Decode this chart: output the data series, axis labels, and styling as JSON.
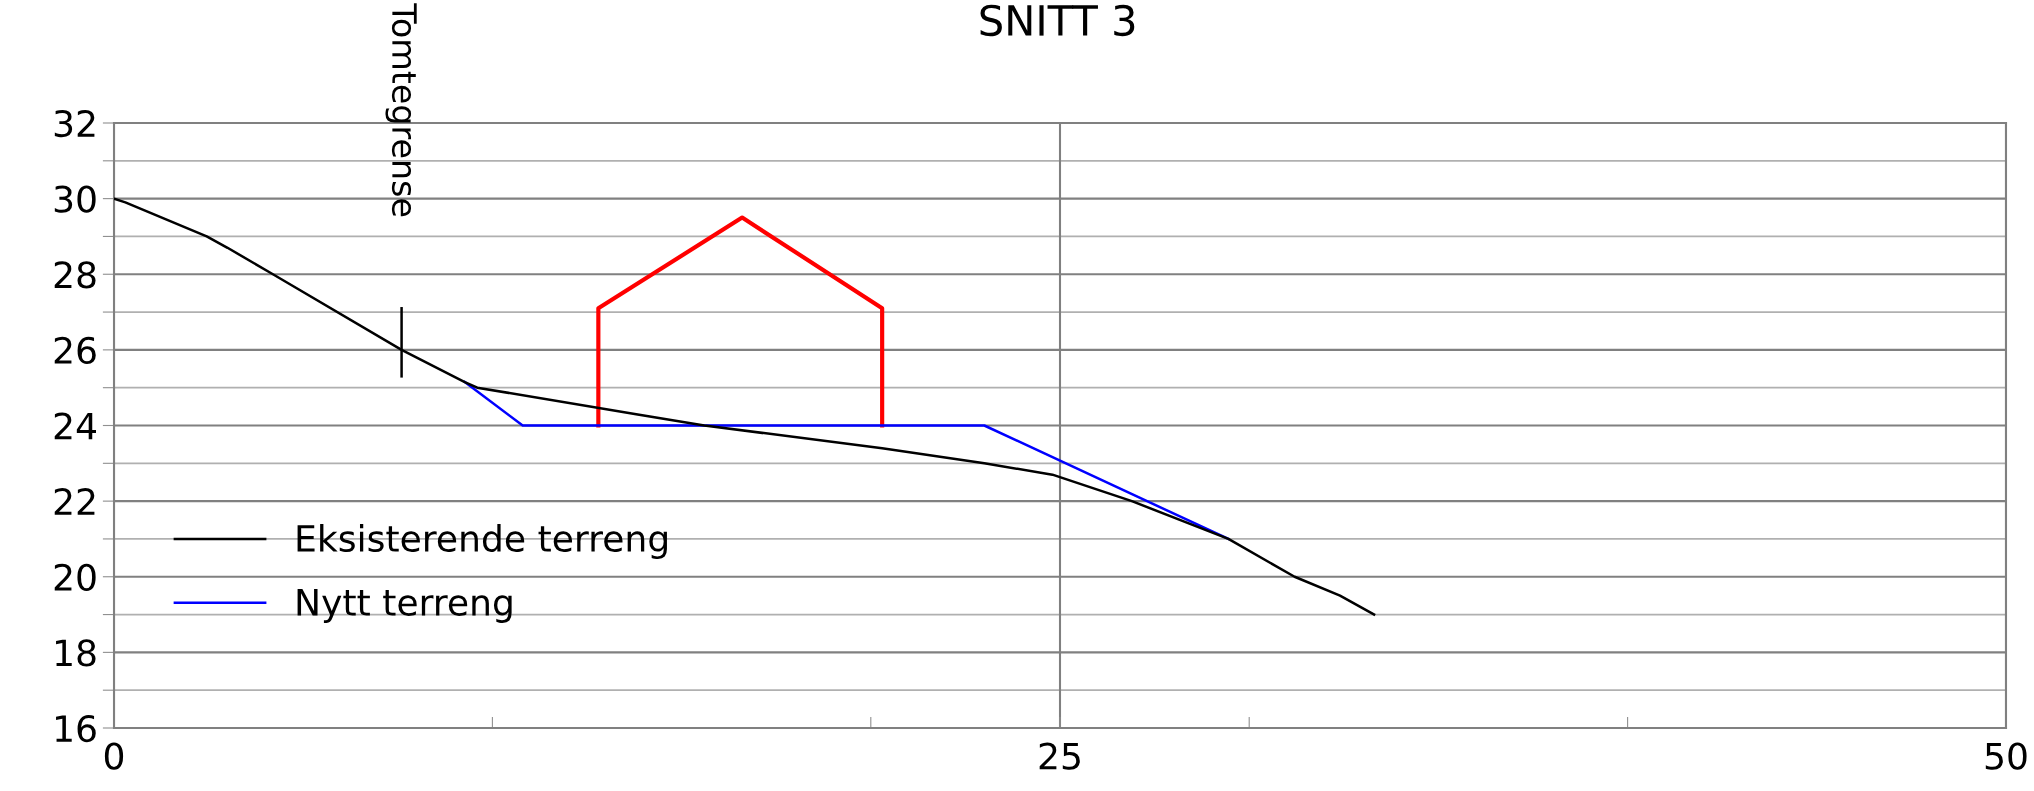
{
  "chart_data": {
    "type": "line",
    "title": "SNITT 3",
    "xlim": [
      0,
      50
    ],
    "ylim": [
      16,
      32
    ],
    "xticks": [
      0,
      {
        "value": 10,
        "label": null
      },
      {
        "value": 20,
        "label": null
      },
      25,
      {
        "value": 30,
        "label": null
      },
      {
        "value": 40,
        "label": null
      },
      50
    ],
    "yticks": [
      16,
      {
        "value": 17,
        "label": null
      },
      18,
      {
        "value": 19,
        "label": null
      },
      20,
      {
        "value": 21,
        "label": null
      },
      22,
      {
        "value": 23,
        "label": null
      },
      24,
      {
        "value": 25,
        "label": null
      },
      26,
      {
        "value": 27,
        "label": null
      },
      28,
      {
        "value": 29,
        "label": null
      },
      30,
      {
        "value": 31,
        "label": null
      },
      32
    ],
    "grid": true,
    "legend": "lower left",
    "series": [
      {
        "name": "Eksisterende terreng",
        "color": "#000000",
        "x": [
          0,
          0.3,
          2.45,
          3.0,
          4.2,
          7.6,
          9.27,
          9.6,
          13.8,
          15.6,
          20.3,
          23.0,
          24.8,
          26.9,
          29.45,
          31.2,
          32.4,
          33.3
        ],
        "values": [
          30.0,
          29.9,
          29.0,
          28.7,
          28.0,
          26.0,
          25.15,
          25.0,
          24.3,
          24.0,
          23.4,
          23.0,
          22.7,
          22.0,
          21.0,
          20.0,
          19.5,
          19.0
        ]
      },
      {
        "name": "Nytt terreng",
        "color": "#0000ff",
        "x": [
          9.27,
          10.8,
          23.0,
          29.45
        ],
        "values": [
          25.15,
          24.0,
          24.0,
          21.0
        ]
      },
      {
        "color": "#ff0000",
        "x": [
          12.8,
          12.8,
          16.6,
          20.3,
          20.3
        ],
        "values": [
          24.0,
          27.1,
          29.5,
          27.1,
          24.0
        ]
      },
      {
        "color": "#000000",
        "x": [
          7.6,
          7.6
        ],
        "values": [
          25.3,
          27.1
        ]
      }
    ],
    "annotations": [
      {
        "text": "Tomtegrense",
        "x": 7.6,
        "y": 27.1
      }
    ]
  }
}
